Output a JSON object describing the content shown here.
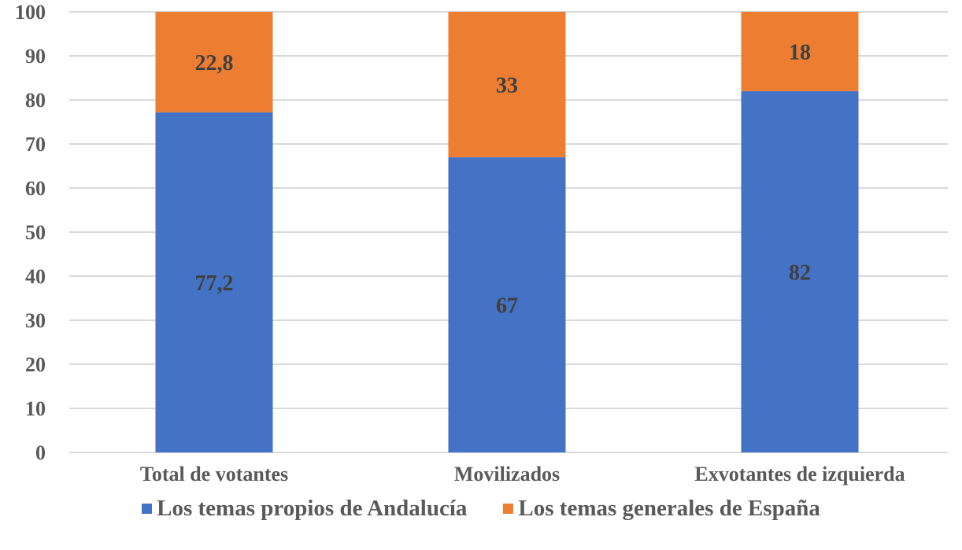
{
  "chart_data": {
    "type": "bar",
    "stacked": true,
    "title": "",
    "xlabel": "",
    "ylabel": "",
    "ylim": [
      0,
      100
    ],
    "yticks": [
      "0",
      "10",
      "20",
      "30",
      "40",
      "50",
      "60",
      "70",
      "80",
      "90",
      "100"
    ],
    "grid": true,
    "categories": [
      "Total de votantes",
      "Movilizados",
      "Exvotantes de izquierda"
    ],
    "series": [
      {
        "name": "Los temas propios de Andalucía",
        "color": "#4472C4",
        "values": [
          77.2,
          67,
          82
        ],
        "labels": [
          "77,2",
          "67",
          "82"
        ]
      },
      {
        "name": "Los temas generales de España",
        "color": "#ED7D31",
        "values": [
          22.8,
          33,
          18
        ],
        "labels": [
          "22,8",
          "33",
          "18"
        ]
      }
    ],
    "legend_position": "bottom"
  }
}
